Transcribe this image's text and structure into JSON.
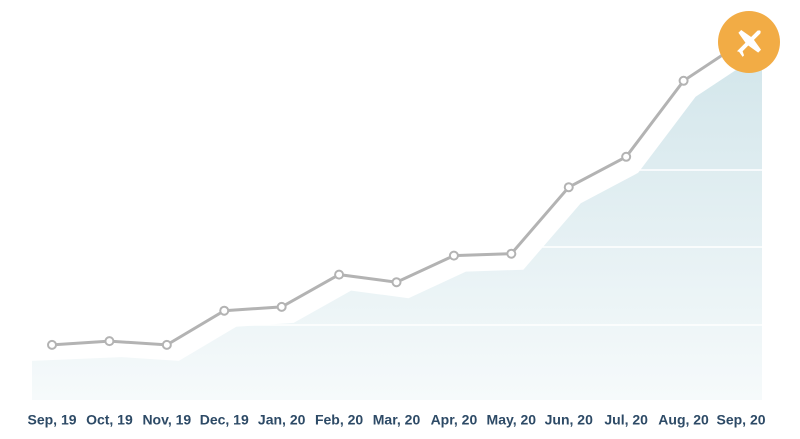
{
  "chart_data": {
    "type": "line",
    "categories": [
      "Sep, 19",
      "Oct, 19",
      "Nov, 19",
      "Dec, 19",
      "Jan, 20",
      "Feb, 20",
      "Mar, 20",
      "Apr, 20",
      "May, 20",
      "Jun, 20",
      "Jul, 20",
      "Aug, 20",
      "Sep, 20"
    ],
    "values": [
      14.5,
      15.5,
      14.5,
      23.5,
      24.5,
      33,
      31,
      38,
      38.5,
      56,
      64,
      84,
      94
    ],
    "color": "#b3b3b3",
    "ylim": [
      0,
      100
    ]
  }
}
